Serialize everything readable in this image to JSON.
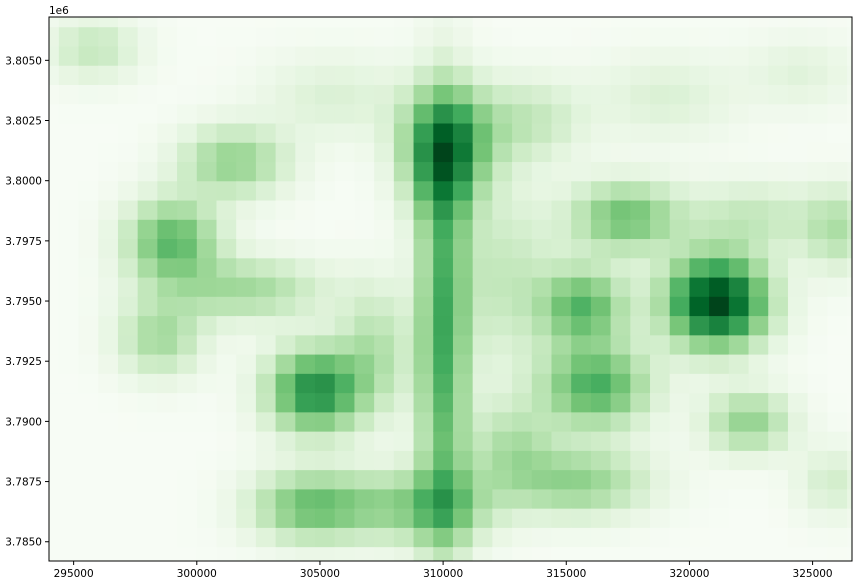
{
  "chart_data": {
    "type": "heatmap",
    "title": "",
    "xlabel": "",
    "ylabel": "",
    "colormap": "Greens",
    "colors": {
      "low": "#f7fcf5",
      "high": "#00441b"
    },
    "y_offset_label": "1e6",
    "xlim": [
      294000,
      326600
    ],
    "ylim": [
      3784200,
      3806800
    ],
    "x_ticks": [
      295000,
      300000,
      305000,
      310000,
      315000,
      320000,
      325000
    ],
    "x_tick_labels": [
      "295000",
      "300000",
      "305000",
      "310000",
      "315000",
      "320000",
      "325000"
    ],
    "y_ticks": [
      3.785,
      3.7875,
      3.79,
      3.7925,
      3.795,
      3.7975,
      3.8,
      3.8025,
      3.805
    ],
    "y_tick_labels": [
      "3.7850",
      "3.7875",
      "3.7900",
      "3.7925",
      "3.7950",
      "3.7975",
      "3.8000",
      "3.8025",
      "3.8050"
    ],
    "grid": false,
    "cell_size": 800,
    "blobs": [
      {
        "x": 310200,
        "y": 3801800,
        "sx": 1300,
        "sy": 1500,
        "value": 0.55
      },
      {
        "x": 310000,
        "y": 3800200,
        "sx": 1000,
        "sy": 1500,
        "value": 0.3
      },
      {
        "x": 310000,
        "y": 3793500,
        "sx": 700,
        "sy": 5800,
        "value": 0.55
      },
      {
        "x": 310000,
        "y": 3786500,
        "sx": 1500,
        "sy": 1100,
        "value": 0.35
      },
      {
        "x": 321100,
        "y": 3795000,
        "sx": 1400,
        "sy": 1300,
        "value": 1.0
      },
      {
        "x": 304800,
        "y": 3791300,
        "sx": 1300,
        "sy": 1200,
        "value": 0.7
      },
      {
        "x": 304600,
        "y": 3786500,
        "sx": 1600,
        "sy": 1000,
        "value": 0.45
      },
      {
        "x": 299000,
        "y": 3797500,
        "sx": 1300,
        "sy": 1200,
        "value": 0.5
      },
      {
        "x": 302000,
        "y": 3795500,
        "sx": 2200,
        "sy": 900,
        "value": 0.3
      },
      {
        "x": 301500,
        "y": 3800800,
        "sx": 1500,
        "sy": 1000,
        "value": 0.35
      },
      {
        "x": 298500,
        "y": 3793500,
        "sx": 1200,
        "sy": 1100,
        "value": 0.3
      },
      {
        "x": 316200,
        "y": 3791500,
        "sx": 1500,
        "sy": 1200,
        "value": 0.55
      },
      {
        "x": 315700,
        "y": 3794800,
        "sx": 1200,
        "sy": 1100,
        "value": 0.5
      },
      {
        "x": 317400,
        "y": 3798500,
        "sx": 1500,
        "sy": 1000,
        "value": 0.45
      },
      {
        "x": 315500,
        "y": 3787500,
        "sx": 2000,
        "sy": 1000,
        "value": 0.35
      },
      {
        "x": 313500,
        "y": 3802500,
        "sx": 1500,
        "sy": 1200,
        "value": 0.2
      },
      {
        "x": 322400,
        "y": 3790000,
        "sx": 1200,
        "sy": 900,
        "value": 0.35
      },
      {
        "x": 295800,
        "y": 3805500,
        "sx": 1300,
        "sy": 900,
        "value": 0.2
      },
      {
        "x": 326000,
        "y": 3798000,
        "sx": 1000,
        "sy": 1200,
        "value": 0.25
      },
      {
        "x": 322500,
        "y": 3798500,
        "sx": 1800,
        "sy": 1000,
        "value": 0.2
      },
      {
        "x": 307200,
        "y": 3793000,
        "sx": 1000,
        "sy": 1800,
        "value": 0.25
      },
      {
        "x": 312800,
        "y": 3789000,
        "sx": 1200,
        "sy": 1300,
        "value": 0.25
      },
      {
        "x": 305500,
        "y": 3803500,
        "sx": 2000,
        "sy": 1200,
        "value": 0.12
      },
      {
        "x": 319000,
        "y": 3803500,
        "sx": 2000,
        "sy": 1200,
        "value": 0.12
      },
      {
        "x": 324500,
        "y": 3804500,
        "sx": 1500,
        "sy": 1000,
        "value": 0.1
      },
      {
        "x": 325800,
        "y": 3787500,
        "sx": 1000,
        "sy": 1000,
        "value": 0.15
      },
      {
        "x": 312500,
        "y": 3796000,
        "sx": 1500,
        "sy": 2500,
        "value": 0.2
      },
      {
        "x": 307500,
        "y": 3786500,
        "sx": 1500,
        "sy": 1000,
        "value": 0.2
      }
    ]
  }
}
